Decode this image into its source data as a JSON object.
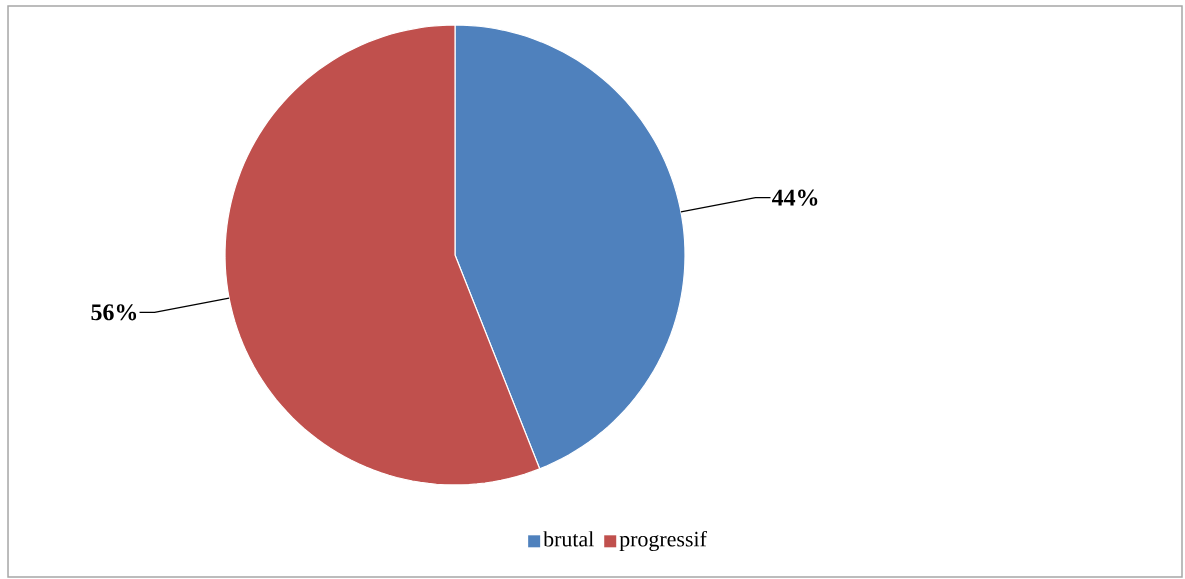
{
  "chart_data": {
    "type": "pie",
    "categories": [
      "brutal",
      "progressif"
    ],
    "values": [
      44,
      56
    ],
    "colors": [
      "#4f81bd",
      "#c0504d"
    ],
    "value_labels": [
      "44%",
      "56%"
    ],
    "legend": "bottom"
  }
}
